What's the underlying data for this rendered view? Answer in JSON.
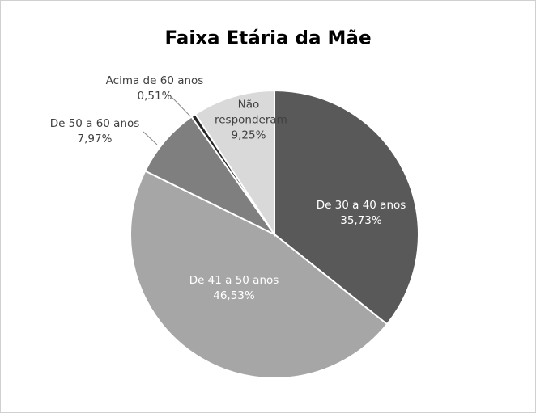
{
  "chart_data": {
    "type": "pie",
    "title": "Faixa Etária da Mãe",
    "categories": [
      "De 30 a 40 anos",
      "De 41 a 50 anos",
      "De 50 a 60 anos",
      "Acima de 60 anos",
      "Não responderam"
    ],
    "values": [
      35.73,
      46.53,
      7.97,
      0.51,
      9.25
    ],
    "value_labels": [
      "35,73%",
      "46,53%",
      "7,97%",
      "0,51%",
      "9,25%"
    ],
    "colors": [
      "#595959",
      "#a6a6a6",
      "#7f7f7f",
      "#262626",
      "#d9d9d9"
    ]
  }
}
